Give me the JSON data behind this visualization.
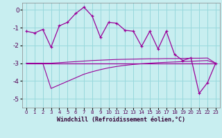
{
  "bg_color": "#c8eef0",
  "grid_color": "#98d8dc",
  "line_color": "#990099",
  "ylim": [
    -5.5,
    0.4
  ],
  "xlim": [
    -0.5,
    23.5
  ],
  "yticks": [
    0,
    -1,
    -2,
    -3,
    -4,
    -5
  ],
  "xticks": [
    0,
    1,
    2,
    3,
    4,
    5,
    6,
    7,
    8,
    9,
    10,
    11,
    12,
    13,
    14,
    15,
    16,
    17,
    18,
    19,
    20,
    21,
    22,
    23
  ],
  "main_y": [
    -1.2,
    -1.3,
    -1.1,
    -2.1,
    -0.9,
    -0.7,
    -0.2,
    0.15,
    -0.35,
    -1.55,
    -0.7,
    -0.75,
    -1.15,
    -1.2,
    -2.05,
    -1.2,
    -2.2,
    -1.2,
    -2.5,
    -2.85,
    -2.7,
    -4.7,
    -4.1,
    -3.0
  ],
  "line_flat_y": [
    -3.0,
    -3.0,
    -3.0,
    -3.0,
    -3.0,
    -3.0,
    -3.0,
    -3.0,
    -3.0,
    -3.0,
    -3.0,
    -3.0,
    -3.0,
    -3.0,
    -3.0,
    -3.0,
    -3.0,
    -3.0,
    -3.0,
    -3.0,
    -3.0,
    -3.0,
    -3.0,
    -3.0
  ],
  "line_up_y": [
    -3.0,
    -3.0,
    -3.0,
    -3.0,
    -2.97,
    -2.94,
    -2.91,
    -2.88,
    -2.85,
    -2.83,
    -2.81,
    -2.79,
    -2.78,
    -2.77,
    -2.76,
    -2.75,
    -2.75,
    -2.74,
    -2.74,
    -2.73,
    -2.72,
    -2.72,
    -2.71,
    -3.0
  ],
  "line_down_y": [
    -3.0,
    -3.0,
    -3.0,
    -4.42,
    -4.22,
    -4.02,
    -3.82,
    -3.62,
    -3.48,
    -3.36,
    -3.26,
    -3.18,
    -3.12,
    -3.07,
    -3.03,
    -3.0,
    -2.97,
    -2.95,
    -2.93,
    -2.91,
    -2.89,
    -2.87,
    -2.85,
    -3.0
  ],
  "xlabel": "Windchill (Refroidissement éolien,°C)"
}
